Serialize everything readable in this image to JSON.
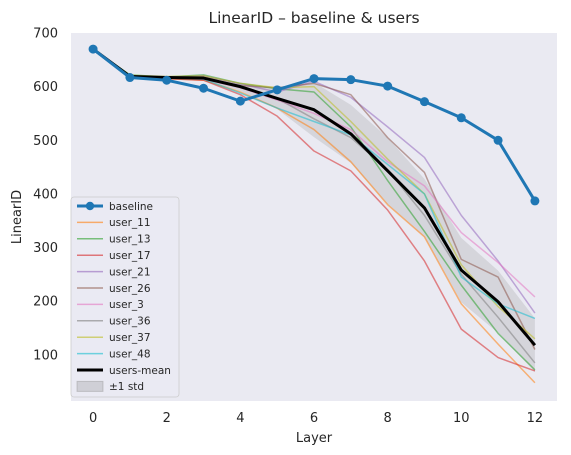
{
  "chart_data": {
    "type": "line",
    "title": "LinearID – baseline & users",
    "xlabel": "Layer",
    "ylabel": "LinearID",
    "xlim": [
      -0.6,
      12.6
    ],
    "ylim": [
      14,
      700
    ],
    "xticks": [
      0,
      2,
      4,
      6,
      8,
      10,
      12
    ],
    "yticks": [
      100,
      200,
      300,
      400,
      500,
      600,
      700
    ],
    "grid": false,
    "legend_position": "lower-left",
    "x": [
      0,
      1,
      2,
      3,
      4,
      5,
      6,
      7,
      8,
      9,
      10,
      11,
      12
    ],
    "series": [
      {
        "name": "baseline",
        "color": "#1f77b4",
        "marker": "circle",
        "values": [
          670,
          617,
          612,
          597,
          573,
          594,
          615,
          613,
          601,
          572,
          542,
          500,
          387
        ]
      },
      {
        "name": "user_11",
        "color": "#ff7f0e",
        "values": [
          670,
          619,
          615,
          612,
          590,
          560,
          520,
          460,
          380,
          320,
          195,
          120,
          48
        ]
      },
      {
        "name": "user_13",
        "color": "#2ca02c",
        "values": [
          670,
          622,
          618,
          622,
          606,
          596,
          590,
          525,
          425,
          330,
          230,
          140,
          72
        ]
      },
      {
        "name": "user_17",
        "color": "#d62728",
        "values": [
          670,
          618,
          615,
          612,
          585,
          545,
          480,
          443,
          370,
          275,
          148,
          95,
          70
        ]
      },
      {
        "name": "user_21",
        "color": "#9467bd",
        "values": [
          670,
          620,
          618,
          620,
          605,
          590,
          610,
          580,
          525,
          468,
          360,
          275,
          178
        ]
      },
      {
        "name": "user_26",
        "color": "#8c564b",
        "values": [
          670,
          620,
          618,
          615,
          602,
          598,
          606,
          585,
          505,
          440,
          278,
          245,
          110
        ]
      },
      {
        "name": "user_3",
        "color": "#e377c2",
        "values": [
          670,
          620,
          617,
          614,
          598,
          575,
          550,
          520,
          460,
          415,
          328,
          272,
          208
        ]
      },
      {
        "name": "user_36",
        "color": "#7f7f7f",
        "values": [
          670,
          620,
          617,
          616,
          602,
          578,
          540,
          505,
          445,
          360,
          250,
          170,
          85
        ]
      },
      {
        "name": "user_37",
        "color": "#bcbd22",
        "values": [
          670,
          621,
          619,
          620,
          606,
          598,
          600,
          535,
          465,
          400,
          268,
          190,
          130
        ]
      },
      {
        "name": "user_48",
        "color": "#17becf",
        "values": [
          670,
          619,
          616,
          614,
          588,
          560,
          535,
          510,
          455,
          400,
          245,
          195,
          168
        ]
      },
      {
        "name": "users-mean",
        "color": "#000000",
        "values": [
          670,
          619,
          617,
          616,
          600,
          578,
          557,
          512,
          443,
          374,
          258,
          199,
          118
        ]
      }
    ],
    "band": {
      "name": "±1 std",
      "color": "#808080",
      "upper": [
        670,
        621,
        619,
        620,
        608,
        598,
        608,
        566,
        505,
        428,
        318,
        257,
        168
      ],
      "lower": [
        670,
        617,
        615,
        611,
        592,
        558,
        506,
        458,
        381,
        320,
        198,
        141,
        68
      ]
    }
  }
}
